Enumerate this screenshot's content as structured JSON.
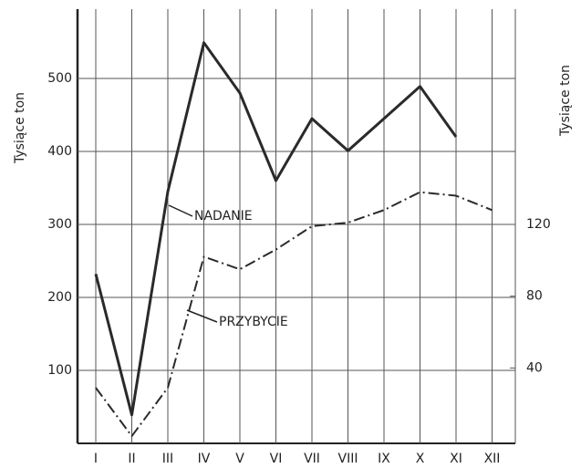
{
  "chart_data": {
    "type": "line",
    "categories": [
      "I",
      "II",
      "III",
      "IV",
      "V",
      "VI",
      "VII",
      "VIII",
      "IX",
      "X",
      "XI",
      "XII"
    ],
    "ylabel": "Tysiące ton",
    "y2label": "Tysiące ton",
    "ylim": [
      0,
      595
    ],
    "yticks": [
      100,
      200,
      300,
      400,
      500
    ],
    "y2lim": [
      0,
      240
    ],
    "y2ticks": [
      40,
      80,
      120
    ],
    "grid": true,
    "series": [
      {
        "name": "NADANIE",
        "color": "#2a2a2a",
        "values": [
          232,
          39,
          345,
          549,
          480,
          360,
          445,
          401,
          445,
          489,
          420,
          null
        ]
      },
      {
        "name": "PRZYBYCIE",
        "color": "#2a2a2a",
        "axis": "y2",
        "values": [
          29,
          2,
          29,
          102,
          95,
          106,
          119,
          121,
          128,
          138,
          136,
          128
        ]
      }
    ]
  }
}
